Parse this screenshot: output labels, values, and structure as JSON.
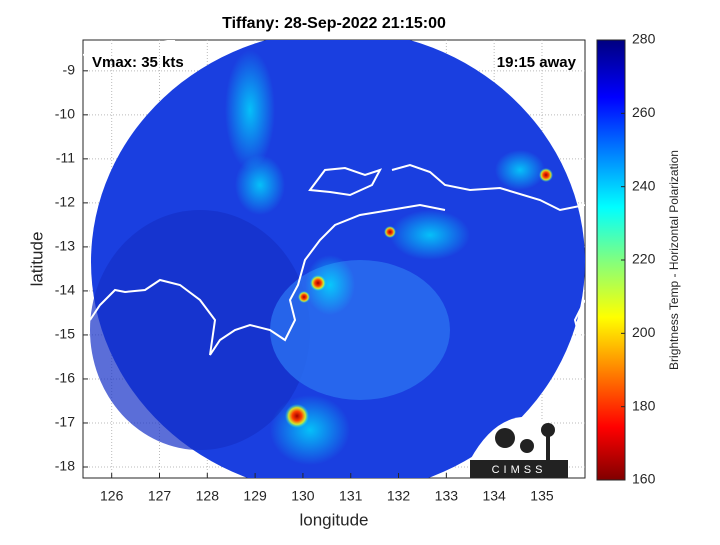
{
  "chart_data": {
    "type": "map",
    "title": "Tiffany: 28-Sep-2022 21:15:00",
    "annotations": [
      "Vmax: 35 kts",
      "19:15 away"
    ],
    "xlabel": "longitude",
    "ylabel": "latitude",
    "xlim": [
      125.4,
      135.9
    ],
    "ylim": [
      -18.25,
      -8.3
    ],
    "xticks": [
      126,
      127,
      128,
      129,
      130,
      131,
      132,
      133,
      134,
      135
    ],
    "yticks": [
      -18,
      -17,
      -16,
      -15,
      -14,
      -13,
      -12,
      -11,
      -10,
      -9
    ],
    "grid": true,
    "colorbar": {
      "label": "Brightness Temp - Horizontal Polarization",
      "lim": [
        160,
        280
      ],
      "ticks": [
        160,
        180,
        200,
        220,
        240,
        260,
        280
      ]
    },
    "logo": "CIMSS"
  }
}
